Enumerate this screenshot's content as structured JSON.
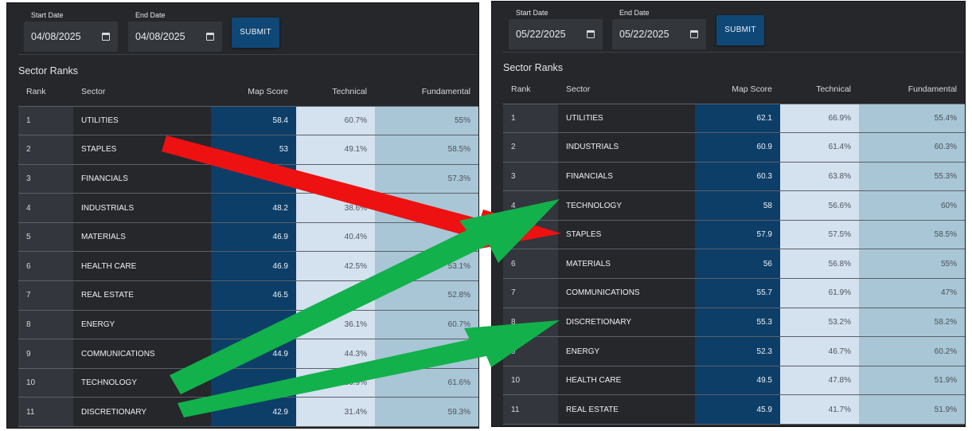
{
  "left": {
    "start_label": "Start Date",
    "start_value": "04/08/2025",
    "end_label": "End Date",
    "end_value": "04/08/2025",
    "submit_label": "SUBMIT",
    "section_title": "Sector Ranks",
    "headers": {
      "rank": "Rank",
      "sector": "Sector",
      "map": "Map Score",
      "tech": "Technical",
      "fund": "Fundamental"
    },
    "rows": [
      {
        "rank": "1",
        "sector": "UTILITIES",
        "map": "58.4",
        "tech": "60.7%",
        "fund": "55%"
      },
      {
        "rank": "2",
        "sector": "STAPLES",
        "map": "53",
        "tech": "49.1%",
        "fund": "58.5%"
      },
      {
        "rank": "3",
        "sector": "FINANCIALS",
        "map": "49",
        "tech": "",
        "fund": "57.3%"
      },
      {
        "rank": "4",
        "sector": "INDUSTRIALS",
        "map": "48.2",
        "tech": "38.6%",
        "fund": ""
      },
      {
        "rank": "5",
        "sector": "MATERIALS",
        "map": "46.9",
        "tech": "40.4%",
        "fund": ""
      },
      {
        "rank": "6",
        "sector": "HEALTH CARE",
        "map": "46.9",
        "tech": "42.5%",
        "fund": "53.1%"
      },
      {
        "rank": "7",
        "sector": "REAL ESTATE",
        "map": "46.5",
        "tech": "",
        "fund": "52.8%"
      },
      {
        "rank": "8",
        "sector": "ENERGY",
        "map": "",
        "tech": "36.1%",
        "fund": "60.7%"
      },
      {
        "rank": "9",
        "sector": "COMMUNICATIONS",
        "map": "44.9",
        "tech": "44.3%",
        "fund": ""
      },
      {
        "rank": "10",
        "sector": "TECHNOLOGY",
        "map": "",
        "tech": "30.9%",
        "fund": "61.6%"
      },
      {
        "rank": "11",
        "sector": "DISCRETIONARY",
        "map": "42.9",
        "tech": "31.4%",
        "fund": "59.3%"
      }
    ]
  },
  "right": {
    "start_label": "Start Date",
    "start_value": "05/22/2025",
    "end_label": "End Date",
    "end_value": "05/22/2025",
    "submit_label": "SUBMIT",
    "section_title": "Sector Ranks",
    "headers": {
      "rank": "Rank",
      "sector": "Sector",
      "map": "Map Score",
      "tech": "Technical",
      "fund": "Fundamental"
    },
    "rows": [
      {
        "rank": "1",
        "sector": "UTILITIES",
        "map": "62.1",
        "tech": "66.9%",
        "fund": "55.4%"
      },
      {
        "rank": "2",
        "sector": "INDUSTRIALS",
        "map": "60.9",
        "tech": "61.4%",
        "fund": "60.3%"
      },
      {
        "rank": "3",
        "sector": "FINANCIALS",
        "map": "60.3",
        "tech": "63.8%",
        "fund": "55.3%"
      },
      {
        "rank": "4",
        "sector": "TECHNOLOGY",
        "map": "58",
        "tech": "56.6%",
        "fund": "60%"
      },
      {
        "rank": "5",
        "sector": "STAPLES",
        "map": "57.9",
        "tech": "57.5%",
        "fund": "58.5%"
      },
      {
        "rank": "6",
        "sector": "MATERIALS",
        "map": "56",
        "tech": "56.8%",
        "fund": "55%"
      },
      {
        "rank": "7",
        "sector": "COMMUNICATIONS",
        "map": "55.7",
        "tech": "61.9%",
        "fund": "47%"
      },
      {
        "rank": "8",
        "sector": "DISCRETIONARY",
        "map": "55.3",
        "tech": "53.2%",
        "fund": "58.2%"
      },
      {
        "rank": "9",
        "sector": "ENERGY",
        "map": "52.3",
        "tech": "46.7%",
        "fund": "60.2%"
      },
      {
        "rank": "10",
        "sector": "HEALTH CARE",
        "map": "49.5",
        "tech": "47.8%",
        "fund": "51.9%"
      },
      {
        "rank": "11",
        "sector": "REAL ESTATE",
        "map": "45.9",
        "tech": "41.7%",
        "fund": "51.9%"
      }
    ]
  },
  "annotations": {
    "red_color": "#ee1111",
    "green_color": "#12b14b"
  }
}
